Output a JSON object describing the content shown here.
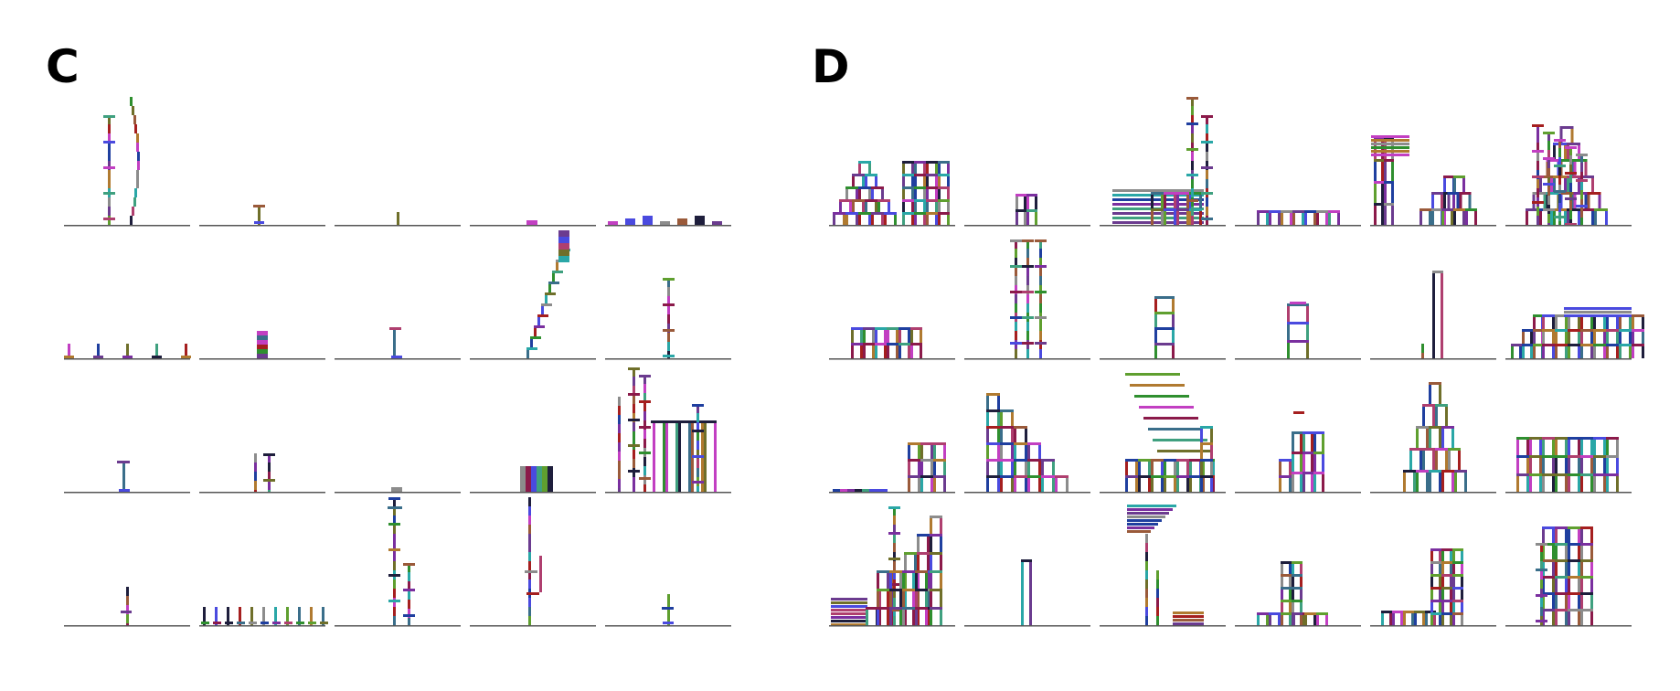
{
  "panels": [
    {
      "label": "C",
      "rows": 4,
      "cols": 5
    },
    {
      "label": "D",
      "rows": 4,
      "cols": 6
    }
  ],
  "colors": {
    "baseline": "#555555",
    "palette": [
      "#8b1a4a",
      "#2f8f2f",
      "#1f3f9f",
      "#b07a30",
      "#2aa7a7",
      "#7a2f9f",
      "#a51f1f",
      "#6f6f2a",
      "#c23fc2",
      "#3a6e8a",
      "#8c8c8c",
      "#1e1e3c",
      "#5f9f2f",
      "#9a5a3a",
      "#4a4adf",
      "#af3f6f",
      "#3fa07f",
      "#6b3b8f"
    ]
  }
}
